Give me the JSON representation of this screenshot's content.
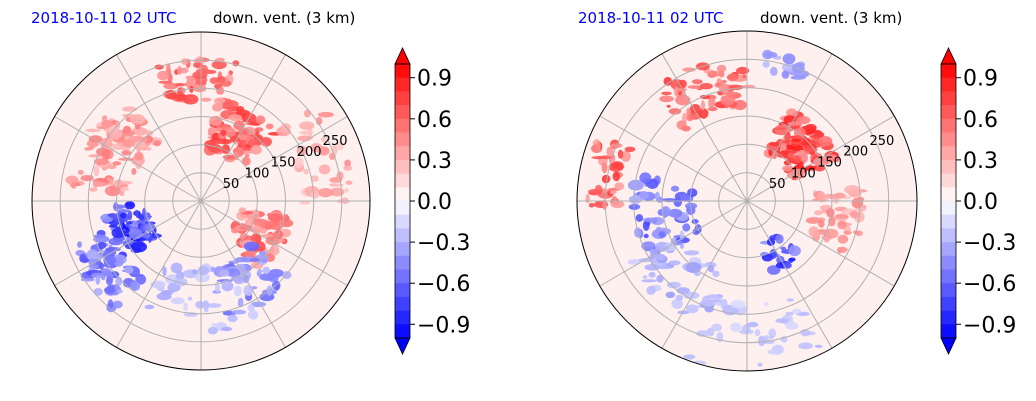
{
  "chart_data": [
    {
      "type": "heatmap",
      "projection": "polar",
      "title_left": "2018-10-11 02 UTC",
      "title_right": "down. vent. (3 km)",
      "title_left_color": "#0000ff",
      "radial_ticks": [
        "50",
        "100",
        "150",
        "200",
        "250"
      ],
      "radial_range": [
        0,
        300
      ],
      "grid": true,
      "colorbar": {
        "ticks": [
          "0.9",
          "0.6",
          "0.3",
          "0.0",
          "−0.3",
          "−0.6",
          "−0.9"
        ],
        "tick_values": [
          0.9,
          0.6,
          0.3,
          0.0,
          -0.3,
          -0.6,
          -0.9
        ],
        "range": [
          -1,
          1
        ],
        "extend": "both",
        "colormap": "bwr"
      }
    },
    {
      "type": "heatmap",
      "projection": "polar",
      "title_left": "2018-10-11 02 UTC",
      "title_right": "down. vent. (3 km)",
      "title_left_color": "#0000ff",
      "radial_ticks": [
        "50",
        "100",
        "150",
        "200",
        "250"
      ],
      "radial_range": [
        0,
        300
      ],
      "grid": true,
      "colorbar": {
        "ticks": [
          "0.9",
          "0.6",
          "0.3",
          "0.0",
          "−0.3",
          "−0.6",
          "−0.9"
        ],
        "tick_values": [
          0.9,
          0.6,
          0.3,
          0.0,
          -0.3,
          -0.6,
          -0.9
        ],
        "range": [
          -1,
          1
        ],
        "extend": "both",
        "colormap": "bwr"
      }
    }
  ]
}
